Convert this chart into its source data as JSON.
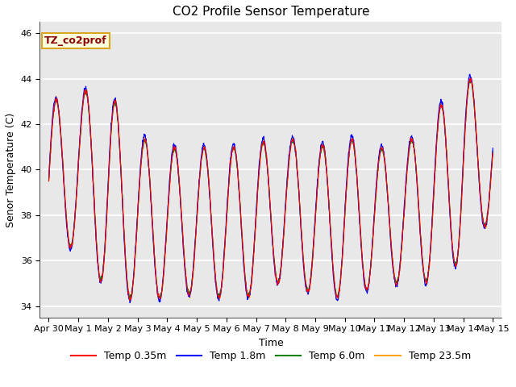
{
  "title": "CO2 Profile Sensor Temperature",
  "ylabel": "Senor Temperature (C)",
  "xlabel": "Time",
  "annotation_label": "TZ_co2prof",
  "ylim": [
    33.5,
    46.5
  ],
  "yticks": [
    34,
    36,
    38,
    40,
    42,
    44,
    46
  ],
  "xtick_labels": [
    "Apr 30",
    "May 1",
    "May 2",
    "May 3",
    "May 4",
    "May 5",
    "May 6",
    "May 7",
    "May 8",
    "May 9",
    "May 10",
    "May 11",
    "May 12",
    "May 13",
    "May 14",
    "May 15"
  ],
  "xtick_positions": [
    0,
    1,
    2,
    3,
    4,
    5,
    6,
    7,
    8,
    9,
    10,
    11,
    12,
    13,
    14,
    15
  ],
  "line_colors": [
    "red",
    "blue",
    "green",
    "orange"
  ],
  "line_labels": [
    "Temp 0.35m",
    "Temp 1.8m",
    "Temp 6.0m",
    "Temp 23.5m"
  ],
  "plot_bg": "#e8e8e8",
  "fig_bg": "#ffffff",
  "title_fontsize": 11,
  "axis_fontsize": 9,
  "tick_fontsize": 8,
  "legend_fontsize": 9
}
